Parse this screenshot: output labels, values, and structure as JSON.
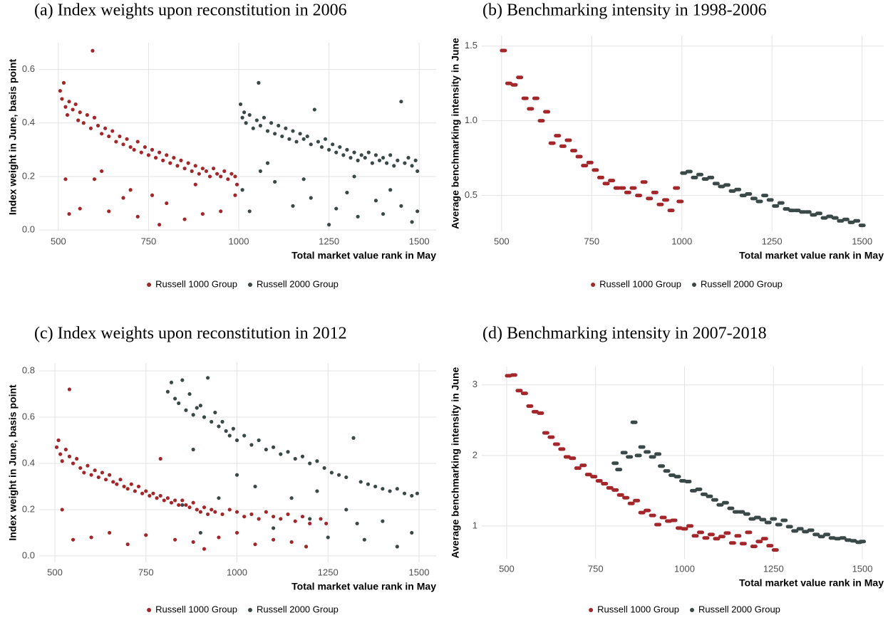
{
  "chart_data": [
    {
      "type": "scatter",
      "marker": "dot",
      "title": "(a) Index weights upon reconstitution in 2006",
      "xlabel": "Total market value rank in May",
      "ylabel": "Index weight in June, basis point",
      "xlim": [
        447,
        1547
      ],
      "ylim": [
        -0.005,
        0.7
      ],
      "xticks": [
        500,
        750,
        1000,
        1250,
        1500
      ],
      "yticks": [
        {
          "value": 0,
          "label": "0.0"
        },
        0.2,
        0.4,
        0.6
      ],
      "grid": true,
      "legend": "bottom",
      "series": [
        {
          "name": "Russell 1000 Group",
          "color": "#a3262a",
          "x": [
            505,
            510,
            515,
            520,
            525,
            530,
            540,
            548,
            555,
            560,
            570,
            580,
            590,
            595,
            600,
            610,
            620,
            630,
            640,
            650,
            660,
            670,
            680,
            690,
            700,
            710,
            720,
            730,
            740,
            750,
            760,
            770,
            780,
            790,
            800,
            810,
            820,
            830,
            840,
            850,
            860,
            870,
            880,
            890,
            900,
            910,
            920,
            930,
            940,
            950,
            960,
            970,
            980,
            990,
            995,
            530,
            560,
            600,
            640,
            680,
            720,
            760,
            800,
            850,
            900,
            950,
            520,
            620,
            700,
            780,
            880,
            990
          ],
          "values": [
            0.52,
            0.49,
            0.55,
            0.46,
            0.43,
            0.48,
            0.45,
            0.47,
            0.41,
            0.44,
            0.4,
            0.43,
            0.38,
            0.67,
            0.42,
            0.39,
            0.36,
            0.38,
            0.35,
            0.37,
            0.33,
            0.35,
            0.32,
            0.34,
            0.31,
            0.3,
            0.33,
            0.29,
            0.31,
            0.28,
            0.3,
            0.27,
            0.29,
            0.26,
            0.28,
            0.25,
            0.27,
            0.24,
            0.26,
            0.23,
            0.25,
            0.22,
            0.24,
            0.21,
            0.23,
            0.22,
            0.2,
            0.23,
            0.21,
            0.2,
            0.22,
            0.19,
            0.21,
            0.2,
            0.17,
            0.06,
            0.08,
            0.19,
            0.07,
            0.12,
            0.05,
            0.13,
            0.1,
            0.04,
            0.06,
            0.07,
            0.19,
            0.22,
            0.15,
            0.02,
            0.17,
            0.13
          ]
        },
        {
          "name": "Russell 2000 Group",
          "color": "#3b4848",
          "x": [
            1005,
            1010,
            1015,
            1020,
            1030,
            1040,
            1050,
            1055,
            1060,
            1070,
            1080,
            1090,
            1100,
            1110,
            1120,
            1130,
            1140,
            1150,
            1160,
            1170,
            1180,
            1190,
            1200,
            1210,
            1220,
            1230,
            1240,
            1250,
            1260,
            1270,
            1280,
            1290,
            1300,
            1310,
            1320,
            1330,
            1340,
            1350,
            1360,
            1370,
            1380,
            1390,
            1400,
            1410,
            1420,
            1430,
            1440,
            1450,
            1460,
            1470,
            1480,
            1490,
            1495,
            1010,
            1030,
            1060,
            1100,
            1150,
            1200,
            1250,
            1270,
            1300,
            1330,
            1380,
            1400,
            1450,
            1480,
            1495,
            1080,
            1180,
            1320,
            1420
          ],
          "values": [
            0.47,
            0.42,
            0.44,
            0.4,
            0.43,
            0.38,
            0.41,
            0.55,
            0.39,
            0.42,
            0.37,
            0.4,
            0.36,
            0.39,
            0.35,
            0.38,
            0.34,
            0.37,
            0.33,
            0.36,
            0.34,
            0.35,
            0.32,
            0.45,
            0.33,
            0.31,
            0.34,
            0.3,
            0.32,
            0.29,
            0.31,
            0.28,
            0.3,
            0.27,
            0.29,
            0.26,
            0.28,
            0.27,
            0.29,
            0.25,
            0.28,
            0.26,
            0.27,
            0.25,
            0.28,
            0.24,
            0.26,
            0.48,
            0.25,
            0.27,
            0.24,
            0.26,
            0.22,
            0.15,
            0.07,
            0.22,
            0.18,
            0.09,
            0.12,
            0.02,
            0.08,
            0.14,
            0.05,
            0.11,
            0.06,
            0.09,
            0.03,
            0.07,
            0.25,
            0.19,
            0.2,
            0.15
          ]
        }
      ]
    },
    {
      "type": "scatter",
      "marker": "dash",
      "title": "(b) Benchmarking intensity in 1998-2006",
      "xlabel": "Total market value rank in May",
      "ylabel": "Average benchmarking intensity in June",
      "xlim": [
        445,
        1560
      ],
      "ylim": [
        0.26,
        1.57
      ],
      "xticks": [
        500,
        750,
        1000,
        1250,
        1500
      ],
      "yticks": [
        0.5,
        {
          "value": 1,
          "label": "1.0"
        },
        1.5
      ],
      "grid": true,
      "legend": "bottom",
      "series": [
        {
          "name": "Russell 1000 Group",
          "color": "#a3262a",
          "x": [
            505,
            520,
            535,
            550,
            565,
            580,
            595,
            610,
            625,
            640,
            655,
            670,
            685,
            700,
            715,
            730,
            745,
            760,
            775,
            790,
            805,
            820,
            835,
            850,
            865,
            880,
            895,
            910,
            925,
            940,
            955,
            970,
            985,
            995
          ],
          "values": [
            1.47,
            1.25,
            1.24,
            1.29,
            1.15,
            1.08,
            1.15,
            1.0,
            1.06,
            0.85,
            0.9,
            0.83,
            0.87,
            0.8,
            0.76,
            0.7,
            0.72,
            0.67,
            0.62,
            0.58,
            0.6,
            0.55,
            0.55,
            0.52,
            0.55,
            0.5,
            0.59,
            0.48,
            0.52,
            0.44,
            0.47,
            0.4,
            0.55,
            0.46
          ]
        },
        {
          "name": "Russell 2000 Group",
          "color": "#3b4848",
          "x": [
            1005,
            1020,
            1035,
            1050,
            1065,
            1080,
            1095,
            1110,
            1125,
            1140,
            1155,
            1170,
            1185,
            1200,
            1215,
            1230,
            1245,
            1260,
            1275,
            1290,
            1305,
            1320,
            1335,
            1350,
            1365,
            1380,
            1395,
            1410,
            1425,
            1440,
            1455,
            1470,
            1485,
            1500
          ],
          "values": [
            0.65,
            0.66,
            0.62,
            0.64,
            0.61,
            0.62,
            0.58,
            0.56,
            0.57,
            0.53,
            0.54,
            0.5,
            0.51,
            0.48,
            0.46,
            0.5,
            0.47,
            0.43,
            0.45,
            0.41,
            0.4,
            0.4,
            0.39,
            0.39,
            0.37,
            0.38,
            0.35,
            0.36,
            0.35,
            0.33,
            0.34,
            0.32,
            0.33,
            0.3
          ]
        }
      ]
    },
    {
      "type": "scatter",
      "marker": "dot",
      "title": "(c) Index weights upon reconstitution in 2012",
      "xlabel": "Total market value rank in May",
      "ylabel": "Index weight in June, basis point",
      "xlim": [
        457,
        1547
      ],
      "ylim": [
        -0.028,
        0.834
      ],
      "xticks": [
        500,
        750,
        1000,
        1250,
        1500
      ],
      "yticks": [
        {
          "value": 0,
          "label": "0.0"
        },
        0.2,
        0.4,
        0.6,
        0.8
      ],
      "grid": true,
      "legend": "bottom",
      "series": [
        {
          "name": "Russell 1000 Group",
          "color": "#a3262a",
          "x": [
            505,
            510,
            515,
            520,
            530,
            540,
            550,
            560,
            570,
            580,
            590,
            600,
            610,
            620,
            630,
            640,
            650,
            660,
            670,
            680,
            690,
            700,
            710,
            720,
            730,
            740,
            750,
            760,
            770,
            780,
            790,
            800,
            810,
            820,
            830,
            840,
            850,
            860,
            870,
            880,
            890,
            900,
            910,
            920,
            930,
            940,
            960,
            980,
            1000,
            1020,
            1040,
            1060,
            1080,
            1100,
            1120,
            1140,
            1160,
            1180,
            1200,
            1230,
            1245,
            540,
            520,
            550,
            600,
            650,
            700,
            750,
            790,
            830,
            880,
            910,
            950,
            1000,
            1050,
            1100,
            1150,
            1190
          ],
          "values": [
            0.47,
            0.5,
            0.44,
            0.41,
            0.46,
            0.43,
            0.4,
            0.42,
            0.38,
            0.36,
            0.39,
            0.35,
            0.37,
            0.34,
            0.36,
            0.33,
            0.35,
            0.32,
            0.31,
            0.33,
            0.3,
            0.29,
            0.31,
            0.28,
            0.3,
            0.27,
            0.28,
            0.26,
            0.27,
            0.25,
            0.26,
            0.24,
            0.25,
            0.23,
            0.24,
            0.22,
            0.24,
            0.22,
            0.21,
            0.23,
            0.2,
            0.19,
            0.21,
            0.18,
            0.2,
            0.19,
            0.18,
            0.2,
            0.19,
            0.17,
            0.18,
            0.16,
            0.19,
            0.17,
            0.16,
            0.18,
            0.15,
            0.17,
            0.14,
            0.16,
            0.14,
            0.72,
            0.2,
            0.07,
            0.08,
            0.1,
            0.05,
            0.09,
            0.42,
            0.07,
            0.06,
            0.03,
            0.08,
            0.1,
            0.05,
            0.07,
            0.06,
            0.04
          ]
        },
        {
          "name": "Russell 2000 Group",
          "color": "#3b4848",
          "x": [
            810,
            820,
            830,
            840,
            850,
            860,
            870,
            880,
            890,
            900,
            910,
            920,
            930,
            940,
            950,
            960,
            970,
            980,
            990,
            1000,
            1020,
            1040,
            1060,
            1080,
            1100,
            1120,
            1140,
            1160,
            1180,
            1200,
            1220,
            1240,
            1260,
            1280,
            1300,
            1320,
            1340,
            1360,
            1380,
            1400,
            1420,
            1440,
            1460,
            1480,
            1495,
            850,
            880,
            900,
            950,
            1000,
            1050,
            1100,
            1150,
            1200,
            1250,
            1300,
            1350,
            1400,
            1440,
            1480,
            1220,
            1330
          ],
          "values": [
            0.71,
            0.75,
            0.68,
            0.66,
            0.76,
            0.63,
            0.7,
            0.61,
            0.64,
            0.65,
            0.6,
            0.77,
            0.58,
            0.62,
            0.56,
            0.58,
            0.54,
            0.52,
            0.55,
            0.5,
            0.52,
            0.48,
            0.5,
            0.46,
            0.47,
            0.44,
            0.45,
            0.42,
            0.43,
            0.4,
            0.41,
            0.38,
            0.36,
            0.35,
            0.34,
            0.51,
            0.32,
            0.31,
            0.3,
            0.29,
            0.28,
            0.29,
            0.27,
            0.26,
            0.27,
            0.22,
            0.46,
            0.1,
            0.25,
            0.35,
            0.3,
            0.12,
            0.25,
            0.16,
            0.08,
            0.2,
            0.07,
            0.15,
            0.04,
            0.1,
            0.28,
            0.14
          ]
        }
      ]
    },
    {
      "type": "scatter",
      "marker": "dash",
      "title": "(d) Benchmarking intensity in 2007-2018",
      "xlabel": "Total market value rank in May",
      "ylabel": "Average benchmarking intensity in June",
      "xlim": [
        430,
        1560
      ],
      "ylim": [
        0.535,
        3.26
      ],
      "xticks": [
        500,
        750,
        1000,
        1250,
        1500
      ],
      "yticks": [
        1,
        2,
        3
      ],
      "grid": true,
      "legend": "bottom",
      "series": [
        {
          "name": "Russell 1000 Group",
          "color": "#a3262a",
          "x": [
            505,
            520,
            535,
            550,
            565,
            580,
            595,
            610,
            625,
            640,
            655,
            670,
            685,
            700,
            715,
            730,
            745,
            760,
            775,
            790,
            805,
            820,
            835,
            850,
            865,
            880,
            895,
            910,
            925,
            940,
            955,
            970,
            985,
            1000,
            1015,
            1030,
            1045,
            1060,
            1075,
            1090,
            1105,
            1120,
            1135,
            1150,
            1165,
            1180,
            1195,
            1210,
            1225,
            1240,
            1255
          ],
          "values": [
            3.13,
            3.14,
            2.92,
            2.88,
            2.7,
            2.62,
            2.6,
            2.32,
            2.26,
            2.16,
            2.09,
            1.98,
            1.96,
            1.82,
            1.86,
            1.73,
            1.7,
            1.64,
            1.6,
            1.54,
            1.51,
            1.44,
            1.4,
            1.32,
            1.36,
            1.19,
            1.22,
            1.15,
            1.02,
            1.12,
            1.07,
            1.08,
            0.97,
            0.96,
            1.0,
            0.86,
            0.91,
            0.83,
            0.88,
            0.82,
            0.85,
            0.9,
            0.76,
            0.86,
            0.75,
            0.91,
            0.71,
            0.78,
            0.82,
            0.72,
            0.66
          ]
        },
        {
          "name": "Russell 2000 Group",
          "color": "#3b4848",
          "x": [
            805,
            815,
            830,
            845,
            858,
            870,
            880,
            895,
            910,
            925,
            935,
            950,
            965,
            980,
            995,
            1010,
            1025,
            1040,
            1055,
            1070,
            1085,
            1100,
            1115,
            1130,
            1145,
            1160,
            1175,
            1190,
            1205,
            1220,
            1235,
            1250,
            1265,
            1280,
            1295,
            1310,
            1325,
            1340,
            1355,
            1370,
            1385,
            1400,
            1415,
            1430,
            1445,
            1460,
            1475,
            1490,
            1500
          ],
          "values": [
            1.89,
            1.8,
            2.04,
            1.98,
            2.47,
            2.0,
            2.12,
            2.05,
            1.98,
            2.02,
            1.85,
            1.78,
            1.72,
            1.7,
            1.64,
            1.63,
            1.5,
            1.52,
            1.45,
            1.42,
            1.37,
            1.3,
            1.33,
            1.25,
            1.2,
            1.2,
            1.17,
            1.1,
            1.12,
            1.09,
            1.05,
            1.1,
            1.02,
            1.08,
            0.99,
            0.93,
            0.96,
            0.92,
            0.94,
            0.88,
            0.85,
            0.88,
            0.83,
            0.82,
            0.83,
            0.8,
            0.79,
            0.77,
            0.78
          ]
        }
      ]
    }
  ]
}
